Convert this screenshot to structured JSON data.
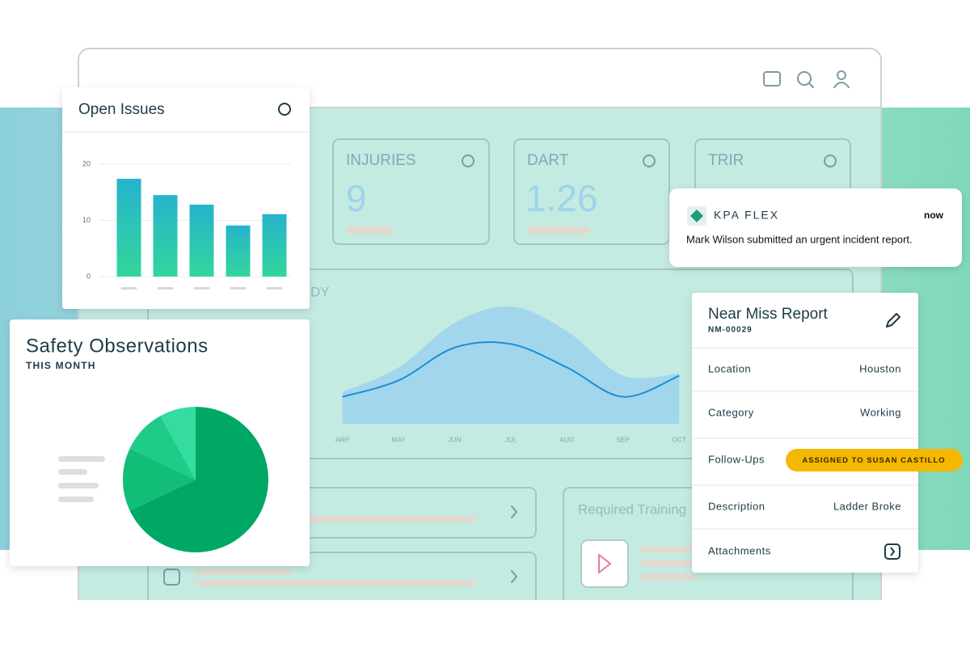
{
  "chart_data": [
    {
      "type": "bar",
      "title": "Open Issues",
      "categories": [
        null,
        null,
        null,
        null,
        null
      ],
      "values": [
        17.4,
        14.5,
        12.8,
        9.1,
        11.1
      ],
      "ylim": [
        0,
        20
      ],
      "yticks": [
        0,
        10,
        20
      ],
      "grid": true,
      "color": [
        "#26b3cc",
        "#33d69c"
      ]
    },
    {
      "type": "pie",
      "title": "Safety Observations",
      "subtitle": "THIS MONTH",
      "values": [
        68,
        14,
        10,
        8
      ],
      "colors": [
        "#00a865",
        "#12bd78",
        "#1fcc87",
        "#35dca0"
      ]
    },
    {
      "type": "line",
      "title": "DY",
      "categories": [
        "ARP",
        "MAY",
        "JUN",
        "JUL",
        "AUG",
        "SEP",
        "OCT"
      ],
      "ylim": [
        0,
        100
      ],
      "series": [
        {
          "style": "area",
          "color": "#a2d6ec",
          "values": [
            27,
            48,
            86,
            100,
            79,
            41,
            43
          ]
        },
        {
          "style": "line",
          "color": "#1a8fd6",
          "values": [
            23,
            37,
            65,
            68,
            48,
            23,
            41
          ]
        }
      ]
    }
  ],
  "kpis": [
    {
      "label": "INJURIES",
      "value": 9
    },
    {
      "label": "DART",
      "value": 1.26
    },
    {
      "label": "TRIR"
    }
  ],
  "panels": {
    "training": "Required Training"
  },
  "notification": {
    "app": "KPA FLEX",
    "time": "now",
    "message": "Mark Wilson submitted an urgent incident report."
  },
  "near_miss": {
    "title": "Near Miss Report",
    "id": "NM-00029",
    "rows": [
      [
        "Location",
        "Houston"
      ],
      [
        "Category",
        "Working"
      ],
      [
        "Follow-Ups",
        "ASSIGNED TO SUSAN CASTILLO"
      ],
      [
        "Description",
        "Ladder Broke"
      ],
      [
        "Attachments"
      ]
    ]
  }
}
